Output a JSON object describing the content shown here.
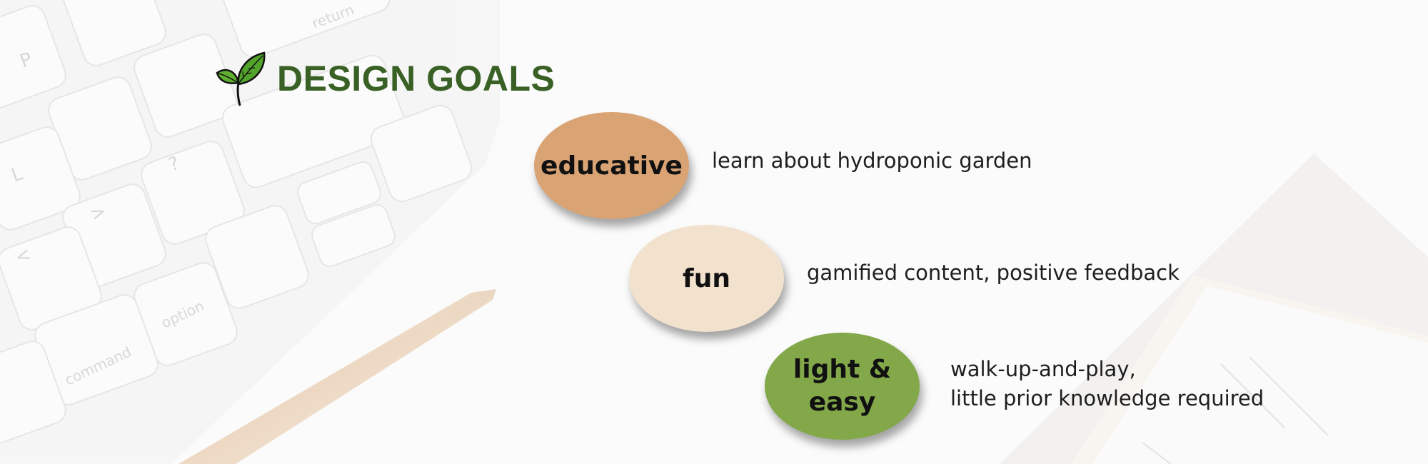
{
  "title": "DESIGN GOALS",
  "colors": {
    "title": "#3a6125",
    "educative": "#d9a374",
    "fun": "#f2e2cd",
    "light_easy": "#82a84a",
    "background": "#fbfbfb"
  },
  "icons": {
    "logo": "leaf-icon"
  },
  "goals": [
    {
      "label": "educative",
      "description": [
        "learn about hydroponic garden"
      ]
    },
    {
      "label": "fun",
      "description": [
        "gamified content, positive feedback"
      ]
    },
    {
      "label": [
        "light &",
        "easy"
      ],
      "description": [
        "walk-up-and-play,",
        "little prior knowledge required"
      ]
    }
  ],
  "background_text": {
    "keys": [
      "P",
      "return",
      "L",
      "?",
      ">",
      "<",
      "option",
      "command"
    ]
  }
}
